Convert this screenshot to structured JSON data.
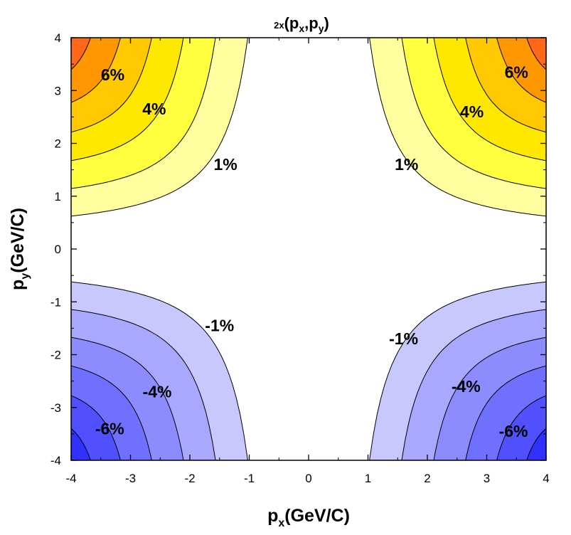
{
  "chart_data": {
    "type": "contour",
    "title": {
      "main": "2x",
      "open": "(p",
      "sub1": "x",
      "sep": ",p",
      "sub2": "y",
      "close": ")"
    },
    "xlabel": {
      "main": "p",
      "sub": "x",
      "rest": "(GeV/C)"
    },
    "ylabel": {
      "main": "p",
      "sub": "y",
      "rest": "(GeV/C)"
    },
    "xlim": [
      -4,
      4
    ],
    "ylim": [
      -4,
      4
    ],
    "x_ticks": [
      "-4",
      "-3",
      "-2",
      "-1",
      "0",
      "1",
      "2",
      "3",
      "4"
    ],
    "y_ticks": [
      "-4",
      "-3",
      "-2",
      "-1",
      "0",
      "1",
      "2",
      "3",
      "4"
    ],
    "grid": false,
    "level_colors_positive": [
      "#ffffa0",
      "#ffff40",
      "#ffe800",
      "#ffc800",
      "#ff9800",
      "#ff6818",
      "#ff2000"
    ],
    "level_colors_negative": [
      "#c8c8ff",
      "#a8a8ff",
      "#8c8cff",
      "#7070ff",
      "#5050ff",
      "#3030ff",
      "#1010ff"
    ],
    "contour_labels": [
      {
        "text": "6%",
        "x": -3.3,
        "y": 3.3
      },
      {
        "text": "4%",
        "x": -2.6,
        "y": 2.65
      },
      {
        "text": "1%",
        "x": -1.4,
        "y": 1.6
      },
      {
        "text": "6%",
        "x": 3.5,
        "y": 3.35
      },
      {
        "text": "4%",
        "x": 2.75,
        "y": 2.6
      },
      {
        "text": "1%",
        "x": 1.65,
        "y": 1.6
      },
      {
        "text": "-1%",
        "x": -1.5,
        "y": -1.45
      },
      {
        "text": "-4%",
        "x": -2.55,
        "y": -2.7
      },
      {
        "text": "-6%",
        "x": -3.35,
        "y": -3.4
      },
      {
        "text": "-1%",
        "x": 1.6,
        "y": -1.7
      },
      {
        "text": "-4%",
        "x": 2.65,
        "y": -2.6
      },
      {
        "text": "-6%",
        "x": 3.45,
        "y": -3.45
      }
    ]
  }
}
